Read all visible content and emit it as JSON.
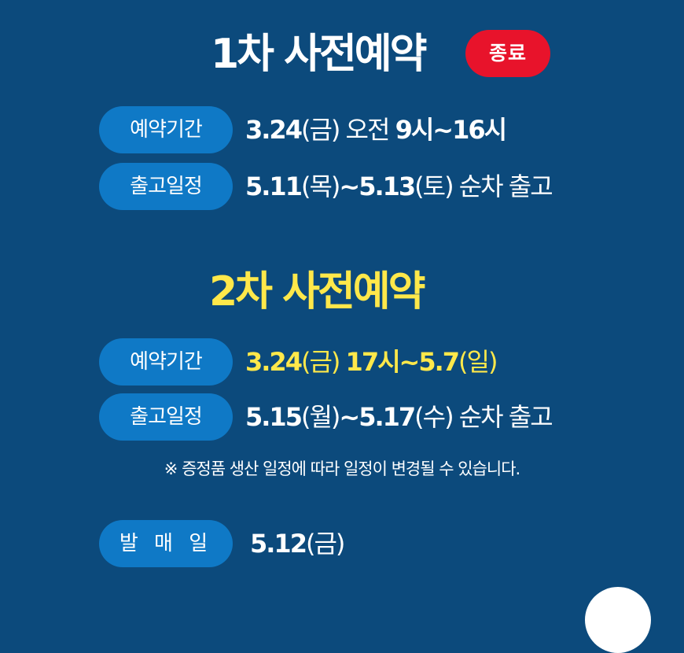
{
  "first": {
    "title": "1차 사전예약",
    "badge": "종료",
    "period_label": "예약기간",
    "period_parts": [
      "3.24",
      "(금) 오전 ",
      "9시~16시"
    ],
    "ship_label": "출고일정",
    "ship_parts": [
      "5.11",
      "(목)",
      "~5.13",
      "(토) 순차 출고"
    ]
  },
  "second": {
    "title": "2차 사전예약",
    "period_label": "예약기간",
    "period_parts": [
      "3.24",
      "(금) ",
      "17시~5.7",
      "(일)"
    ],
    "ship_label": "출고일정",
    "ship_parts": [
      "5.15",
      "(월)",
      "~5.17",
      "(수) 순차 출고"
    ],
    "note": "※ 증정품 생산 일정에 따라 일정이 변경될 수 있습니다."
  },
  "release": {
    "label": "발 매 일",
    "parts": [
      "5.12",
      "(금)"
    ]
  },
  "colors": {
    "background": "#0c4a7c",
    "pill": "#0f79c6",
    "badge": "#e8132b",
    "highlight": "#ffe84a"
  }
}
